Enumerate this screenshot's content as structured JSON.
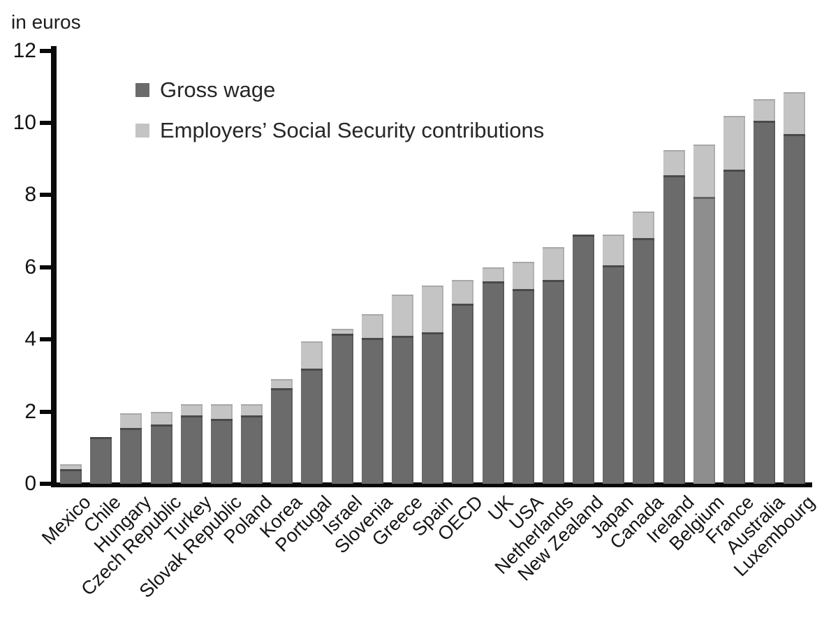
{
  "chart_data": {
    "type": "bar",
    "stacked": true,
    "unit_label": "in euros",
    "xlabel": "",
    "ylabel": "in euros",
    "ylim": [
      0,
      12
    ],
    "yticks": [
      0,
      2,
      4,
      6,
      8,
      10,
      12
    ],
    "ytick_labels": [
      "0",
      "2",
      "4",
      "6",
      "8",
      "10",
      "12"
    ],
    "grid": false,
    "legend_position": "top-left-inside",
    "legend": [
      {
        "label": "Gross wage",
        "color": "#6b6b6b"
      },
      {
        "label": "Employers’ Social Security contributions",
        "color": "#c4c4c4"
      }
    ],
    "categories": [
      "Mexico",
      "Chile",
      "Hungary",
      "Czech Republic",
      "Turkey",
      "Slovak Republic",
      "Poland",
      "Korea",
      "Portugal",
      "Israel",
      "Slovenia",
      "Greece",
      "Spain",
      "OECD",
      "UK",
      "USA",
      "Netherlands",
      "New Zealand",
      "Japan",
      "Canada",
      "Ireland",
      "Belgium",
      "France",
      "Australia",
      "Luxembourg"
    ],
    "series": [
      {
        "name": "Gross wage",
        "color": "#6b6b6b",
        "values": [
          0.4,
          1.3,
          1.55,
          1.65,
          1.9,
          1.8,
          1.9,
          2.65,
          3.2,
          4.15,
          4.05,
          4.1,
          4.2,
          5.0,
          5.6,
          5.4,
          5.65,
          6.9,
          6.05,
          6.8,
          8.55,
          7.95,
          8.7,
          10.05,
          9.7
        ]
      },
      {
        "name": "Employers’ Social Security contributions",
        "color": "#c4c4c4",
        "values": [
          0.15,
          0,
          0.4,
          0.35,
          0.3,
          0.4,
          0.3,
          0.25,
          0.75,
          0.15,
          0.65,
          1.15,
          1.3,
          0.65,
          0.4,
          0.75,
          0.9,
          0,
          0.85,
          0.75,
          0.7,
          1.45,
          1.5,
          0.6,
          1.15
        ]
      }
    ],
    "bar_color_overrides": {
      "Belgium": "#8e8e8e"
    }
  },
  "colors": {
    "gross_bar": "#6b6b6b",
    "ssc_bar": "#c4c4c4",
    "belgium_gross_bar": "#8e8e8e",
    "axis": "#0a0a0a",
    "text": "#151515",
    "background": "#ffffff"
  }
}
